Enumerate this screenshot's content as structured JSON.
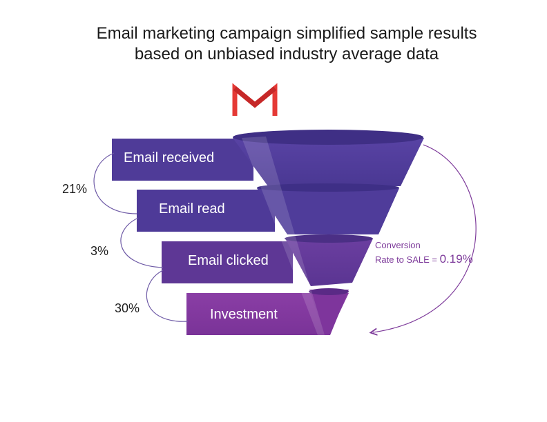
{
  "title": {
    "line1": "Email marketing campaign simplified sample results",
    "line2": "based on unbiased industry average data"
  },
  "logo": {
    "icon": "gmail-icon"
  },
  "funnel": {
    "stages": [
      {
        "label": "Email received",
        "color": "#4e3a97"
      },
      {
        "label": "Email read",
        "color": "#50399a"
      },
      {
        "label": "Email clicked",
        "color": "#603896"
      },
      {
        "label": "Investment",
        "color": "#7b379b"
      }
    ],
    "rates": [
      {
        "value": "21%"
      },
      {
        "value": "3%"
      },
      {
        "value": "30%"
      }
    ]
  },
  "conversion": {
    "line1": "Conversion",
    "line2_prefix": "Rate to SALE = ",
    "line2_value": "0.19%"
  },
  "colors": {
    "arrow": "#7d3a9a",
    "gmail_red": "#e53935",
    "bracket": "#6e5aa6"
  }
}
